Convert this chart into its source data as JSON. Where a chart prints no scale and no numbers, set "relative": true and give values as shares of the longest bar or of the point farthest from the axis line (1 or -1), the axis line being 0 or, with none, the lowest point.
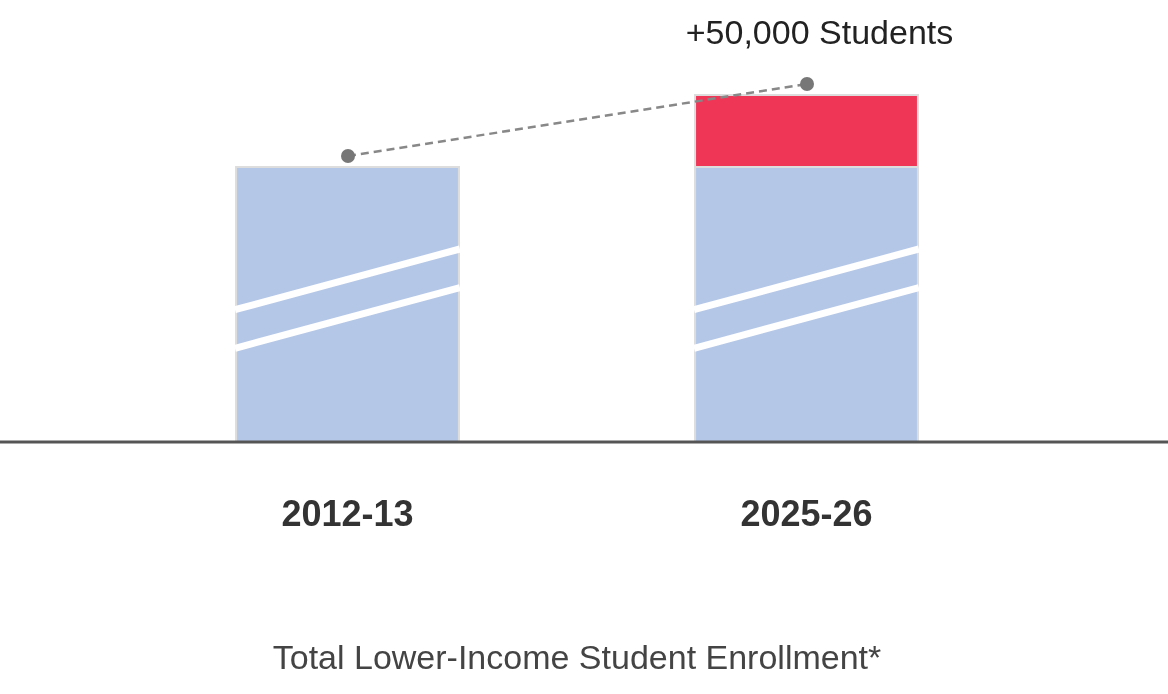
{
  "chart_data": {
    "type": "bar",
    "relative": true,
    "stacked": true,
    "categories": [
      "2012-13",
      "2025-26"
    ],
    "series": [
      {
        "color": "#b4c7e7",
        "values": [
          0.793,
          0.793
        ]
      },
      {
        "color": "#ef3656",
        "values": [
          null,
          0.207
        ]
      }
    ],
    "xlabel": "Total Lower-Income Student Enrollment*",
    "annotations": [
      {
        "text": "+50,000 Students",
        "x": "2025-26",
        "y": 1
      }
    ],
    "grid": false,
    "legend": false
  }
}
